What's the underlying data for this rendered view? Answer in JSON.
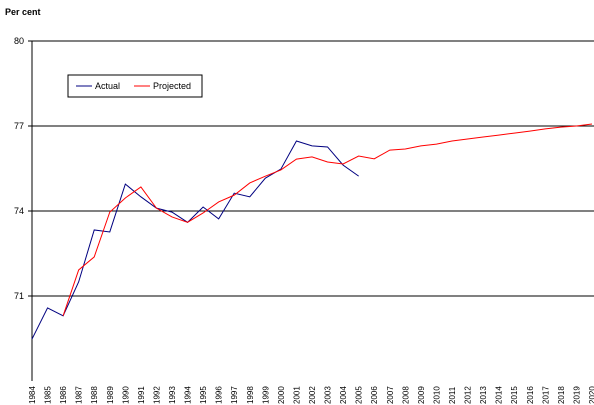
{
  "chart_data": {
    "type": "line",
    "title": "Per cent",
    "categories": [
      "1984",
      "1985",
      "1986",
      "1987",
      "1988",
      "1989",
      "1990",
      "1991",
      "1992",
      "1993",
      "1994",
      "1995",
      "1996",
      "1997",
      "1998",
      "1999",
      "2000",
      "2001",
      "2002",
      "2003",
      "2004",
      "2005",
      "2006",
      "2007",
      "2008",
      "2009",
      "2010",
      "2011",
      "2012",
      "2013",
      "2014",
      "2015",
      "2016",
      "2017",
      "2018",
      "2019",
      "2020"
    ],
    "series": [
      {
        "name": "Actual",
        "color": "#000080",
        "values": [
          69.48,
          70.58,
          70.3,
          71.5,
          73.33,
          73.26,
          74.95,
          74.5,
          74.1,
          73.96,
          73.6,
          74.14,
          73.72,
          74.63,
          74.5,
          75.16,
          75.48,
          76.47,
          76.3,
          76.26,
          75.62,
          75.23,
          null,
          null,
          null,
          null,
          null,
          null,
          null,
          null,
          null,
          null,
          null,
          null,
          null,
          null,
          null
        ]
      },
      {
        "name": "Projected",
        "color": "#ff0000",
        "values": [
          null,
          null,
          70.3,
          71.92,
          72.38,
          73.96,
          74.46,
          74.85,
          74.1,
          73.79,
          73.6,
          73.93,
          74.32,
          74.56,
          74.99,
          75.23,
          75.45,
          75.83,
          75.91,
          75.73,
          75.66,
          75.94,
          75.84,
          76.15,
          76.19,
          76.3,
          76.36,
          76.47,
          76.54,
          76.61,
          76.68,
          76.75,
          76.82,
          76.9,
          76.96,
          77.0,
          77.07
        ]
      }
    ],
    "ylim": [
      68,
      80
    ],
    "yticks": [
      71,
      74,
      77,
      80
    ],
    "grid": true
  }
}
